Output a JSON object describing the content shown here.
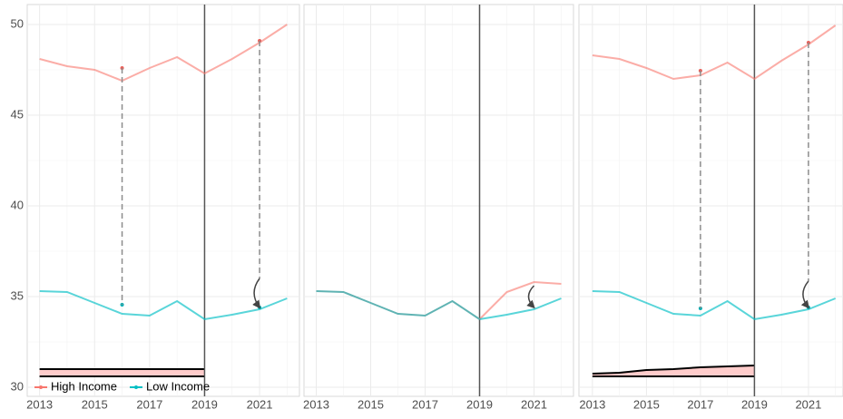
{
  "chart_data": [
    {
      "type": "line",
      "x": [
        2013,
        2014,
        2015,
        2016,
        2017,
        2018,
        2019,
        2020,
        2021,
        2022
      ],
      "xlim": [
        2012.55,
        2022.45
      ],
      "ylim": [
        29.5,
        51.1
      ],
      "xticks": [
        2013,
        2015,
        2017,
        2019,
        2021
      ],
      "yticks": [
        30,
        35,
        40,
        45,
        50
      ],
      "minor_xticks": [
        2014,
        2016,
        2018,
        2020,
        2022
      ],
      "minor_yticks": [
        32.5,
        37.5,
        42.5,
        47.5
      ],
      "grid": true,
      "show_yticks": true,
      "vline": 2019,
      "vline_color": "#555555",
      "legend": "bottom-left",
      "series": [
        {
          "name": "High Income",
          "color": "#f8766d",
          "values": [
            48.1,
            47.7,
            47.5,
            46.9,
            47.6,
            48.2,
            47.3,
            48.1,
            49.0,
            50.0
          ],
          "opacity": 0.6
        },
        {
          "name": "Low Income",
          "color": "#00bfc4",
          "values": [
            35.3,
            35.25,
            34.65,
            34.05,
            33.95,
            34.75,
            33.75,
            34.0,
            34.3,
            34.9
          ],
          "opacity": 0.65
        },
        {
          "color": "#e8605a",
          "values": [
            null,
            null,
            null,
            47.6,
            null,
            null,
            null,
            null,
            49.1,
            null
          ],
          "points": true
        },
        {
          "color": "#00aeb3",
          "values": [
            null,
            null,
            null,
            34.55,
            null,
            null,
            null,
            null,
            34.4,
            null
          ],
          "points": true
        },
        {
          "color": "#8c8c8c",
          "values": [
            null,
            null,
            null,
            47.6,
            null,
            null,
            null,
            null,
            null,
            null
          ],
          "to": [
            null,
            null,
            null,
            34.55,
            null,
            null,
            null,
            null,
            null,
            null
          ],
          "style": "vdash"
        },
        {
          "color": "#8c8c8c",
          "values": [
            null,
            null,
            null,
            null,
            null,
            null,
            null,
            null,
            49.1,
            null
          ],
          "to": [
            null,
            null,
            null,
            null,
            null,
            null,
            null,
            null,
            36.0,
            null
          ],
          "style": "vdash"
        },
        {
          "color": "#8c8c8c",
          "values": [
            null,
            null,
            null,
            34.55,
            null,
            null,
            null,
            null,
            36.05,
            null
          ],
          "dash": true
        },
        {
          "color": "#444444",
          "values": [
            null,
            null,
            null,
            null,
            null,
            null,
            null,
            null,
            36.0,
            null
          ],
          "to": [
            null,
            null,
            null,
            null,
            null,
            null,
            null,
            null,
            34.4,
            null
          ],
          "style": "arrow"
        }
      ],
      "ribbon": {
        "fill": "#ffcccb",
        "line": "#000000",
        "upper": [
          31.0,
          31.0,
          31.0,
          31.0,
          31.0,
          31.0,
          31.0,
          null,
          null,
          null
        ],
        "lower": [
          30.6,
          30.6,
          30.6,
          30.6,
          30.6,
          30.6,
          30.6,
          null,
          null,
          null
        ]
      }
    },
    {
      "type": "line",
      "x": [
        2013,
        2014,
        2015,
        2016,
        2017,
        2018,
        2019,
        2020,
        2021,
        2022
      ],
      "xlim": [
        2012.55,
        2022.45
      ],
      "ylim": [
        29.5,
        51.1
      ],
      "xticks": [
        2013,
        2015,
        2017,
        2019,
        2021
      ],
      "yticks": [
        30,
        35,
        40,
        45,
        50
      ],
      "minor_xticks": [
        2014,
        2016,
        2018,
        2020,
        2022
      ],
      "minor_yticks": [
        32.5,
        37.5,
        42.5,
        47.5
      ],
      "grid": true,
      "show_yticks": false,
      "vline": 2019,
      "vline_color": "#555555",
      "series": [
        {
          "color": "#5fb3b3",
          "values": [
            35.3,
            35.25,
            34.65,
            34.05,
            33.95,
            34.75,
            33.75,
            null,
            null,
            null
          ]
        },
        {
          "color": "#f8766d",
          "values": [
            null,
            null,
            null,
            null,
            null,
            null,
            33.75,
            35.25,
            35.8,
            35.7
          ],
          "opacity": 0.6
        },
        {
          "color": "#00bfc4",
          "values": [
            null,
            null,
            null,
            null,
            null,
            null,
            33.75,
            34.0,
            34.3,
            34.9
          ],
          "opacity": 0.65
        },
        {
          "color": "#444444",
          "values": [
            null,
            null,
            null,
            null,
            null,
            null,
            null,
            null,
            35.6,
            null
          ],
          "to": [
            null,
            null,
            null,
            null,
            null,
            null,
            null,
            null,
            34.4,
            null
          ],
          "style": "arrow"
        }
      ]
    },
    {
      "type": "line",
      "x": [
        2013,
        2014,
        2015,
        2016,
        2017,
        2018,
        2019,
        2020,
        2021,
        2022
      ],
      "xlim": [
        2012.5,
        2022.28
      ],
      "ylim": [
        29.5,
        51.1
      ],
      "xticks": [
        2013,
        2015,
        2017,
        2019,
        2021
      ],
      "yticks": [
        30,
        35,
        40,
        45,
        50
      ],
      "minor_xticks": [
        2014,
        2016,
        2018,
        2020,
        2022
      ],
      "minor_yticks": [
        32.5,
        37.5,
        42.5,
        47.5
      ],
      "grid": true,
      "show_yticks": false,
      "vline": 2019,
      "vline_color": "#555555",
      "series": [
        {
          "color": "#f8766d",
          "values": [
            48.3,
            48.1,
            47.6,
            47.0,
            47.2,
            47.9,
            47.0,
            48.0,
            48.9,
            49.95
          ],
          "opacity": 0.6
        },
        {
          "color": "#00bfc4",
          "values": [
            35.3,
            35.25,
            34.65,
            34.05,
            33.95,
            34.75,
            33.75,
            34.0,
            34.3,
            34.9
          ],
          "opacity": 0.65
        },
        {
          "color": "#e8605a",
          "values": [
            null,
            null,
            null,
            null,
            47.45,
            null,
            null,
            null,
            49.0,
            null
          ],
          "points": true
        },
        {
          "color": "#00aeb3",
          "values": [
            null,
            null,
            null,
            null,
            34.35,
            null,
            null,
            null,
            34.4,
            null
          ],
          "points": true
        },
        {
          "color": "#8c8c8c",
          "values": [
            null,
            null,
            null,
            null,
            47.45,
            null,
            null,
            null,
            null,
            null
          ],
          "to": [
            null,
            null,
            null,
            null,
            34.35,
            null,
            null,
            null,
            null,
            null
          ],
          "style": "vdash"
        },
        {
          "color": "#8c8c8c",
          "values": [
            null,
            null,
            null,
            null,
            null,
            null,
            null,
            null,
            49.0,
            null
          ],
          "to": [
            null,
            null,
            null,
            null,
            null,
            null,
            null,
            null,
            35.85,
            null
          ],
          "style": "vdash"
        },
        {
          "color": "#8c8c8c",
          "values": [
            null,
            null,
            null,
            null,
            34.35,
            null,
            null,
            null,
            35.85,
            null
          ],
          "dash": true
        },
        {
          "color": "#444444",
          "values": [
            null,
            null,
            null,
            null,
            null,
            null,
            null,
            null,
            35.85,
            null
          ],
          "to": [
            null,
            null,
            null,
            null,
            null,
            null,
            null,
            null,
            34.4,
            null
          ],
          "style": "arrow"
        }
      ],
      "ribbon": {
        "fill": "#ffcccb",
        "line": "#000000",
        "upper": [
          30.75,
          30.8,
          30.95,
          31.0,
          31.1,
          31.15,
          31.2,
          null,
          null,
          null
        ],
        "lower": [
          30.6,
          30.6,
          30.6,
          30.6,
          30.6,
          30.6,
          30.6,
          null,
          null,
          null
        ]
      }
    }
  ]
}
